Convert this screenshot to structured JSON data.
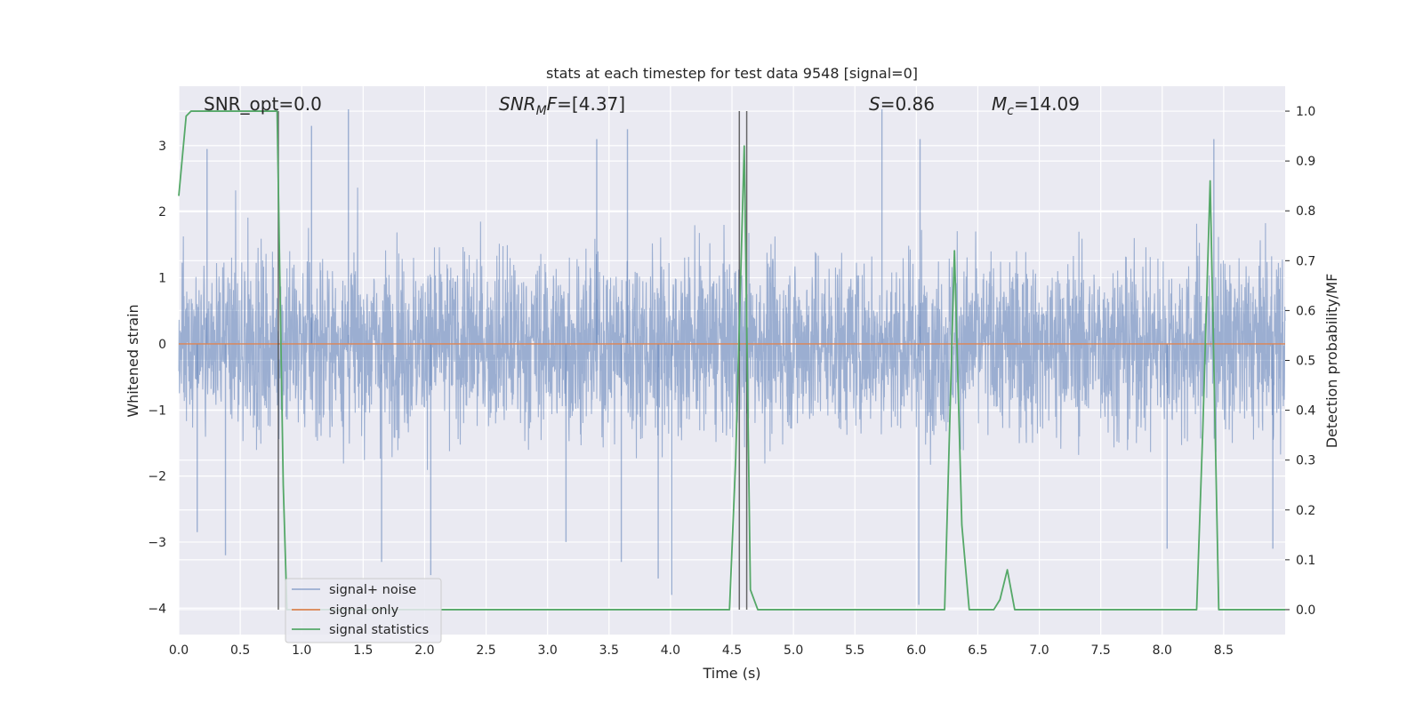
{
  "chart_data": {
    "type": "line",
    "title": "stats at each timestep for test data 9548 [signal=0]",
    "xlabel": "Time (s)",
    "ylabel_left": "Whitened strain",
    "ylabel_right": "Detection probability/MF",
    "xlim": [
      0.0,
      9.0
    ],
    "ylim_left": [
      -4.4,
      3.9
    ],
    "ylim_right": [
      -0.05,
      1.05
    ],
    "xticks": [
      "0.0",
      "0.5",
      "1.0",
      "1.5",
      "2.0",
      "2.5",
      "3.0",
      "3.5",
      "4.0",
      "4.5",
      "5.0",
      "5.5",
      "6.0",
      "6.5",
      "7.0",
      "7.5",
      "8.0",
      "8.5"
    ],
    "yticks_left": [
      "3",
      "2",
      "1",
      "0",
      "−1",
      "−2",
      "−3",
      "−4"
    ],
    "yticks_right": [
      "1.0",
      "0.9",
      "0.8",
      "0.7",
      "0.6",
      "0.5",
      "0.4",
      "0.3",
      "0.2",
      "0.1",
      "0.0"
    ],
    "grid": true,
    "legend_placement": "lower-left",
    "annotations": {
      "snr_opt": "SNR_opt=0.0",
      "snr_mf_prefix": "SNR",
      "snr_mf_sub": "M",
      "snr_mf_suffix": "F=[4.37]",
      "s_prefix": "S",
      "s_value": "=0.86",
      "mc_prefix": "M",
      "mc_sub": "c",
      "mc_value": "=14.09"
    },
    "vertical_lines_x": [
      0.81,
      4.56,
      4.62
    ],
    "series": [
      {
        "name": "signal+ noise",
        "color": "#4c72b0",
        "kind": "noise",
        "sample_rate_hz": 2048,
        "envelope_y": [
          -1.8,
          1.8
        ],
        "extremes": [
          {
            "x": 0.15,
            "y": -2.85
          },
          {
            "x": 0.23,
            "y": 2.95
          },
          {
            "x": 0.38,
            "y": -3.2
          },
          {
            "x": 1.08,
            "y": 3.3
          },
          {
            "x": 1.38,
            "y": 3.55
          },
          {
            "x": 1.65,
            "y": -3.3
          },
          {
            "x": 2.05,
            "y": -3.5
          },
          {
            "x": 3.15,
            "y": -3.0
          },
          {
            "x": 3.4,
            "y": 3.1
          },
          {
            "x": 3.6,
            "y": -3.3
          },
          {
            "x": 3.65,
            "y": 3.25
          },
          {
            "x": 3.9,
            "y": -3.55
          },
          {
            "x": 4.01,
            "y": -3.8
          },
          {
            "x": 5.72,
            "y": 3.55
          },
          {
            "x": 6.02,
            "y": -3.95
          },
          {
            "x": 6.03,
            "y": 3.1
          },
          {
            "x": 8.04,
            "y": -3.1
          },
          {
            "x": 8.42,
            "y": 3.1
          },
          {
            "x": 8.9,
            "y": -3.1
          }
        ]
      },
      {
        "name": "signal only",
        "color": "#dd8452",
        "x": [
          0.0,
          9.0
        ],
        "y": [
          0.0,
          0.0
        ]
      },
      {
        "name": "signal statistics",
        "color": "#55a868",
        "axis": "right",
        "x": [
          0.0,
          0.06,
          0.1,
          0.7,
          0.8,
          0.85,
          0.88,
          4.48,
          4.53,
          4.6,
          4.65,
          4.71,
          6.23,
          6.31,
          6.37,
          6.43,
          6.63,
          6.68,
          6.74,
          6.8,
          8.28,
          8.33,
          8.39,
          8.46,
          9.0
        ],
        "y": [
          0.83,
          0.99,
          1.0,
          1.0,
          1.0,
          0.25,
          0.0,
          0.0,
          0.3,
          0.93,
          0.04,
          0.0,
          0.0,
          0.72,
          0.17,
          0.0,
          0.0,
          0.02,
          0.08,
          0.0,
          0.0,
          0.36,
          0.86,
          0.0,
          0.0
        ]
      }
    ]
  }
}
